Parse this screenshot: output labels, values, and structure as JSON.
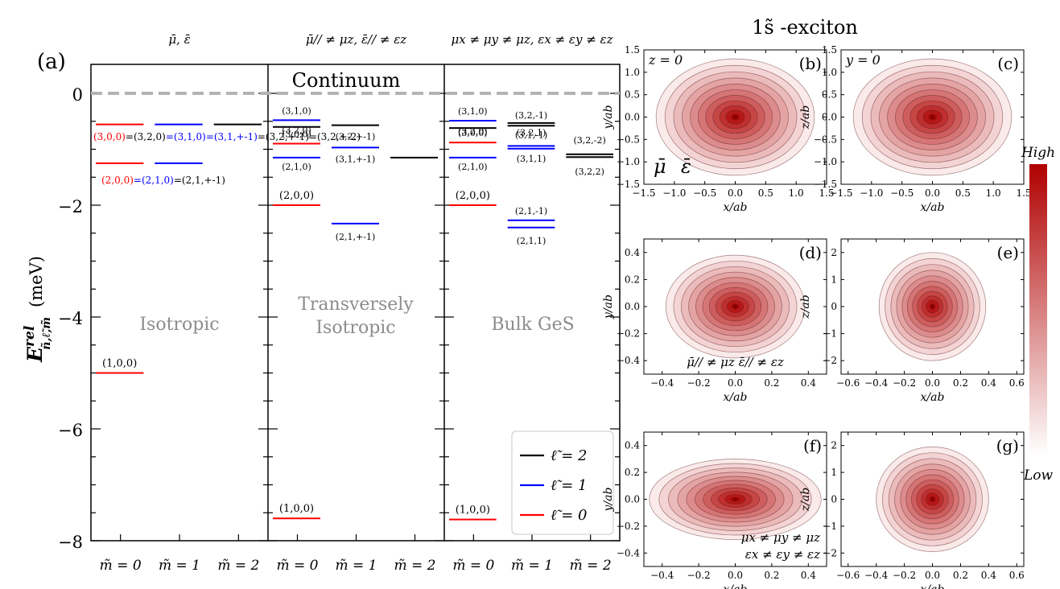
{
  "figure_title": "1s̃ -exciton",
  "chart_data": [
    {
      "id": "a",
      "type": "line",
      "panel_label": "(a)",
      "ylabel_main": "E",
      "ylabel_sup": "rel",
      "ylabel_sub": "ñ,ℓ̃,m̃",
      "ylabel_unit": "(meV)",
      "ylim": [
        -8,
        0.6
      ],
      "yticks": [
        0,
        -2,
        -4,
        -6,
        -8
      ],
      "ytick_labels": [
        "0",
        "−2",
        "−4",
        "−6",
        "−8"
      ],
      "continuum_label": "Continuum",
      "columns": [
        {
          "header": "μ̄, ε̄",
          "region": [
            "Isotropic"
          ],
          "mlabels": [
            "m̃ = 0",
            "m̃ = 1",
            "m̃ = 2"
          ]
        },
        {
          "header": "μ̄// ≠ μz, ε̄// ≠ εz",
          "region": [
            "Transversely",
            "Isotropic"
          ],
          "mlabels": [
            "m̃ = 0",
            "m̃ = 1",
            "m̃ = 2"
          ]
        },
        {
          "header": "μx ≠ μy ≠ μz, εx ≠ εy ≠ εz",
          "region": [
            "Bulk GeS"
          ],
          "mlabels": [
            "m̃ = 0",
            "m̃ = 1",
            "m̃ = 2"
          ]
        }
      ],
      "levels": [
        {
          "col": 0,
          "m": 0,
          "l": 0,
          "E": -5.0,
          "label": "(1,0,0)"
        },
        {
          "col": 0,
          "m": 0,
          "l": 0,
          "E": -1.25
        },
        {
          "col": 0,
          "m": 1,
          "l": 1,
          "E": -1.25
        },
        {
          "col": 0,
          "m": 0,
          "l": 0,
          "E": -0.556
        },
        {
          "col": 0,
          "m": 1,
          "l": 1,
          "E": -0.556
        },
        {
          "col": 0,
          "m": 2,
          "l": 2,
          "E": -0.556
        },
        {
          "col": 1,
          "m": 0,
          "l": 0,
          "E": -7.6,
          "label": "(1,0,0)"
        },
        {
          "col": 1,
          "m": 0,
          "l": 0,
          "E": -2.0,
          "label": "(2,0,0)"
        },
        {
          "col": 1,
          "m": 0,
          "l": 1,
          "E": -1.15,
          "label": "(2,1,0)"
        },
        {
          "col": 1,
          "m": 1,
          "l": 1,
          "E": -2.33,
          "label": "(2,1,+-1)"
        },
        {
          "col": 1,
          "m": 0,
          "l": 0,
          "E": -0.9,
          "label": "(3,0,0)"
        },
        {
          "col": 1,
          "m": 0,
          "l": 2,
          "E": -0.6,
          "label": "(3,2,0)"
        },
        {
          "col": 1,
          "m": 0,
          "l": 1,
          "E": -0.48,
          "label": "(3,1,0)"
        },
        {
          "col": 1,
          "m": 1,
          "l": 1,
          "E": -0.97,
          "label": "(3,1,+-1)"
        },
        {
          "col": 1,
          "m": 1,
          "l": 2,
          "E": -0.57,
          "label": "(3,2,+-1)"
        },
        {
          "col": 1,
          "m": 2,
          "l": 2,
          "E": -1.15
        },
        {
          "col": 2,
          "m": 0,
          "l": 0,
          "E": -7.62,
          "label": "(1,0,0)"
        },
        {
          "col": 2,
          "m": 0,
          "l": 0,
          "E": -2.0,
          "label": "(2,0,0)"
        },
        {
          "col": 2,
          "m": 0,
          "l": 1,
          "E": -1.15,
          "label": "(2,1,0)"
        },
        {
          "col": 2,
          "m": 1,
          "l": 1,
          "E": -2.27,
          "label": "(2,1,-1)"
        },
        {
          "col": 2,
          "m": 1,
          "l": 1,
          "E": -2.4,
          "label": "(2,1,1)"
        },
        {
          "col": 2,
          "m": 0,
          "l": 0,
          "E": -0.88,
          "label": "(3,0,0)"
        },
        {
          "col": 2,
          "m": 0,
          "l": 2,
          "E": -0.62,
          "label": "(3,2,0)"
        },
        {
          "col": 2,
          "m": 0,
          "l": 1,
          "E": -0.49,
          "label": "(3,1,0)"
        },
        {
          "col": 2,
          "m": 1,
          "l": 2,
          "E": -0.53,
          "label": "(3,2,-1)"
        },
        {
          "col": 2,
          "m": 1,
          "l": 2,
          "E": -0.58,
          "label": "(3,2,1)"
        },
        {
          "col": 2,
          "m": 1,
          "l": 1,
          "E": -0.94,
          "label": "(3,1,-1)"
        },
        {
          "col": 2,
          "m": 1,
          "l": 1,
          "E": -0.99,
          "label": "(3,1,1)"
        },
        {
          "col": 2,
          "m": 2,
          "l": 2,
          "E": -1.09,
          "label": "(3,2,-2)"
        },
        {
          "col": 2,
          "m": 2,
          "l": 2,
          "E": -1.14,
          "label": "(3,2,2)"
        }
      ],
      "degenerate_labels": {
        "n3": [
          {
            "text": "(3,0,0)",
            "l": 0
          },
          {
            "text": "=(3,2,0)",
            "l": 2
          },
          {
            "text": "=(3,1,0)",
            "l": 1
          },
          {
            "text": "=(3,1,+-1)",
            "l": 1
          },
          {
            "text": "=(3,2,+-1)",
            "l": 2
          },
          {
            "text": "=(3,2,+-2)",
            "l": 2
          }
        ],
        "n2": [
          {
            "text": "(2,0,0)",
            "l": 0
          },
          {
            "text": "=(2,1,0)",
            "l": 1
          },
          {
            "text": "=(2,1,+-1)",
            "l": 2
          }
        ]
      },
      "legend": {
        "placement": "bottom-right",
        "entries": [
          {
            "label": "ℓ̃ = 2",
            "l": 2
          },
          {
            "label": "ℓ̃ = 1",
            "l": 1
          },
          {
            "label": "ℓ̃ = 0",
            "l": 0
          }
        ]
      },
      "colors": {
        "0": "#ff0000",
        "1": "#0000ff",
        "2": "#000000",
        "continuum": "#b4b4b4",
        "region": "#8c8c8c"
      }
    },
    {
      "id": "b",
      "type": "heatmap",
      "panel_label": "(b)",
      "plane_label": "z = 0",
      "annotations": [
        "μ̄",
        "ε̄"
      ],
      "xlabel": "x/ab",
      "ylabel": "y/ab",
      "xlim": [
        -1.5,
        1.5
      ],
      "ylim": [
        -1.5,
        1.5
      ],
      "xticks": [
        -1.5,
        -1.0,
        -0.5,
        0.0,
        0.5,
        1.0,
        1.5
      ],
      "xtick_labels": [
        "−1.5",
        "−1.0",
        "−0.5",
        "0.0",
        "0.5",
        "1.0",
        "1.5"
      ],
      "yticks": [
        -1.5,
        -1.0,
        -0.5,
        0.0,
        0.5,
        1.0,
        1.5
      ],
      "ytick_labels": [
        "−1.5",
        "−1.0",
        "−0.5",
        "0.0",
        "0.5",
        "1.0",
        "1.5"
      ],
      "contour_extent": [
        1.3,
        1.3
      ]
    },
    {
      "id": "c",
      "type": "heatmap",
      "panel_label": "(c)",
      "plane_label": "y = 0",
      "annotations": [],
      "xlabel": "x/ab",
      "ylabel": "z/ab",
      "xlim": [
        -1.5,
        1.5
      ],
      "ylim": [
        -1.5,
        1.5
      ],
      "xticks": [
        -1.5,
        -1.0,
        -0.5,
        0.0,
        0.5,
        1.0,
        1.5
      ],
      "xtick_labels": [
        "−1.5",
        "−1.0",
        "−0.5",
        "0.0",
        "0.5",
        "1.0",
        "1.5"
      ],
      "yticks": [
        -1.5,
        -1.0,
        -0.5,
        0.0,
        0.5,
        1.0,
        1.5
      ],
      "ytick_labels": [
        "−1.5",
        "−1.0",
        "−0.5",
        "0.0",
        "0.5",
        "1.0",
        "1.5"
      ],
      "contour_extent": [
        1.3,
        1.3
      ]
    },
    {
      "id": "d",
      "type": "heatmap",
      "panel_label": "(d)",
      "plane_label": "",
      "annotations": [
        "μ̄// ≠ μz   ε̄// ≠ εz"
      ],
      "xlabel": "x/ab",
      "ylabel": "y/ab",
      "xlim": [
        -0.5,
        0.5
      ],
      "ylim": [
        -0.5,
        0.5
      ],
      "xticks": [
        -0.4,
        -0.2,
        0.0,
        0.2,
        0.4
      ],
      "xtick_labels": [
        "−0.4",
        "−0.2",
        "0.0",
        "0.2",
        "0.4"
      ],
      "yticks": [
        -0.4,
        -0.2,
        0.0,
        0.2,
        0.4
      ],
      "ytick_labels": [
        "−0.4",
        "−0.2",
        "0.0",
        "0.2",
        "0.4"
      ],
      "contour_extent": [
        0.38,
        0.38
      ]
    },
    {
      "id": "e",
      "type": "heatmap",
      "panel_label": "(e)",
      "plane_label": "",
      "annotations": [],
      "xlabel": "x/ab",
      "ylabel": "z/ab",
      "xlim": [
        -0.65,
        0.65
      ],
      "ylim": [
        -2.5,
        2.5
      ],
      "xticks": [
        -0.6,
        -0.4,
        -0.2,
        0.0,
        0.2,
        0.4,
        0.6
      ],
      "xtick_labels": [
        "−0.6",
        "−0.4",
        "−0.2",
        "0.0",
        "0.2",
        "0.4",
        "0.6"
      ],
      "yticks": [
        -2,
        -1,
        0,
        1,
        2
      ],
      "ytick_labels": [
        "−2",
        "−1",
        "0",
        "1",
        "2"
      ],
      "contour_extent": [
        0.38,
        2.0
      ]
    },
    {
      "id": "f",
      "type": "heatmap",
      "panel_label": "(f)",
      "plane_label": "",
      "annotations": [
        "μx ≠ μy ≠ μz",
        "εx ≠ εy ≠ εz"
      ],
      "xlabel": "x/ab",
      "ylabel": "y/ab",
      "xlim": [
        -0.5,
        0.5
      ],
      "ylim": [
        -0.5,
        0.5
      ],
      "xticks": [
        -0.4,
        -0.2,
        0.0,
        0.2,
        0.4
      ],
      "xtick_labels": [
        "−0.4",
        "−0.2",
        "0.0",
        "0.2",
        "0.4"
      ],
      "yticks": [
        -0.4,
        -0.2,
        0.0,
        0.2,
        0.4
      ],
      "ytick_labels": [
        "−0.4",
        "−0.2",
        "0.0",
        "0.2",
        "0.4"
      ],
      "contour_extent": [
        0.47,
        0.3
      ]
    },
    {
      "id": "g",
      "type": "heatmap",
      "panel_label": "(g)",
      "plane_label": "",
      "annotations": [],
      "xlabel": "x/ab",
      "ylabel": "z/ab",
      "xlim": [
        -0.65,
        0.65
      ],
      "ylim": [
        -2.5,
        2.5
      ],
      "xticks": [
        -0.6,
        -0.4,
        -0.2,
        0.0,
        0.2,
        0.4,
        0.6
      ],
      "xtick_labels": [
        "−0.6",
        "−0.4",
        "−0.2",
        "0.0",
        "0.2",
        "0.4",
        "0.6"
      ],
      "yticks": [
        -2,
        -1,
        0,
        1,
        2
      ],
      "ytick_labels": [
        "−2",
        "−1",
        "0",
        "1",
        "2"
      ],
      "contour_extent": [
        0.4,
        1.95
      ]
    }
  ],
  "colorbar": {
    "top_label": "High",
    "bottom_label": "Low",
    "color_high": "#b00000",
    "color_low": "#ffffff"
  }
}
